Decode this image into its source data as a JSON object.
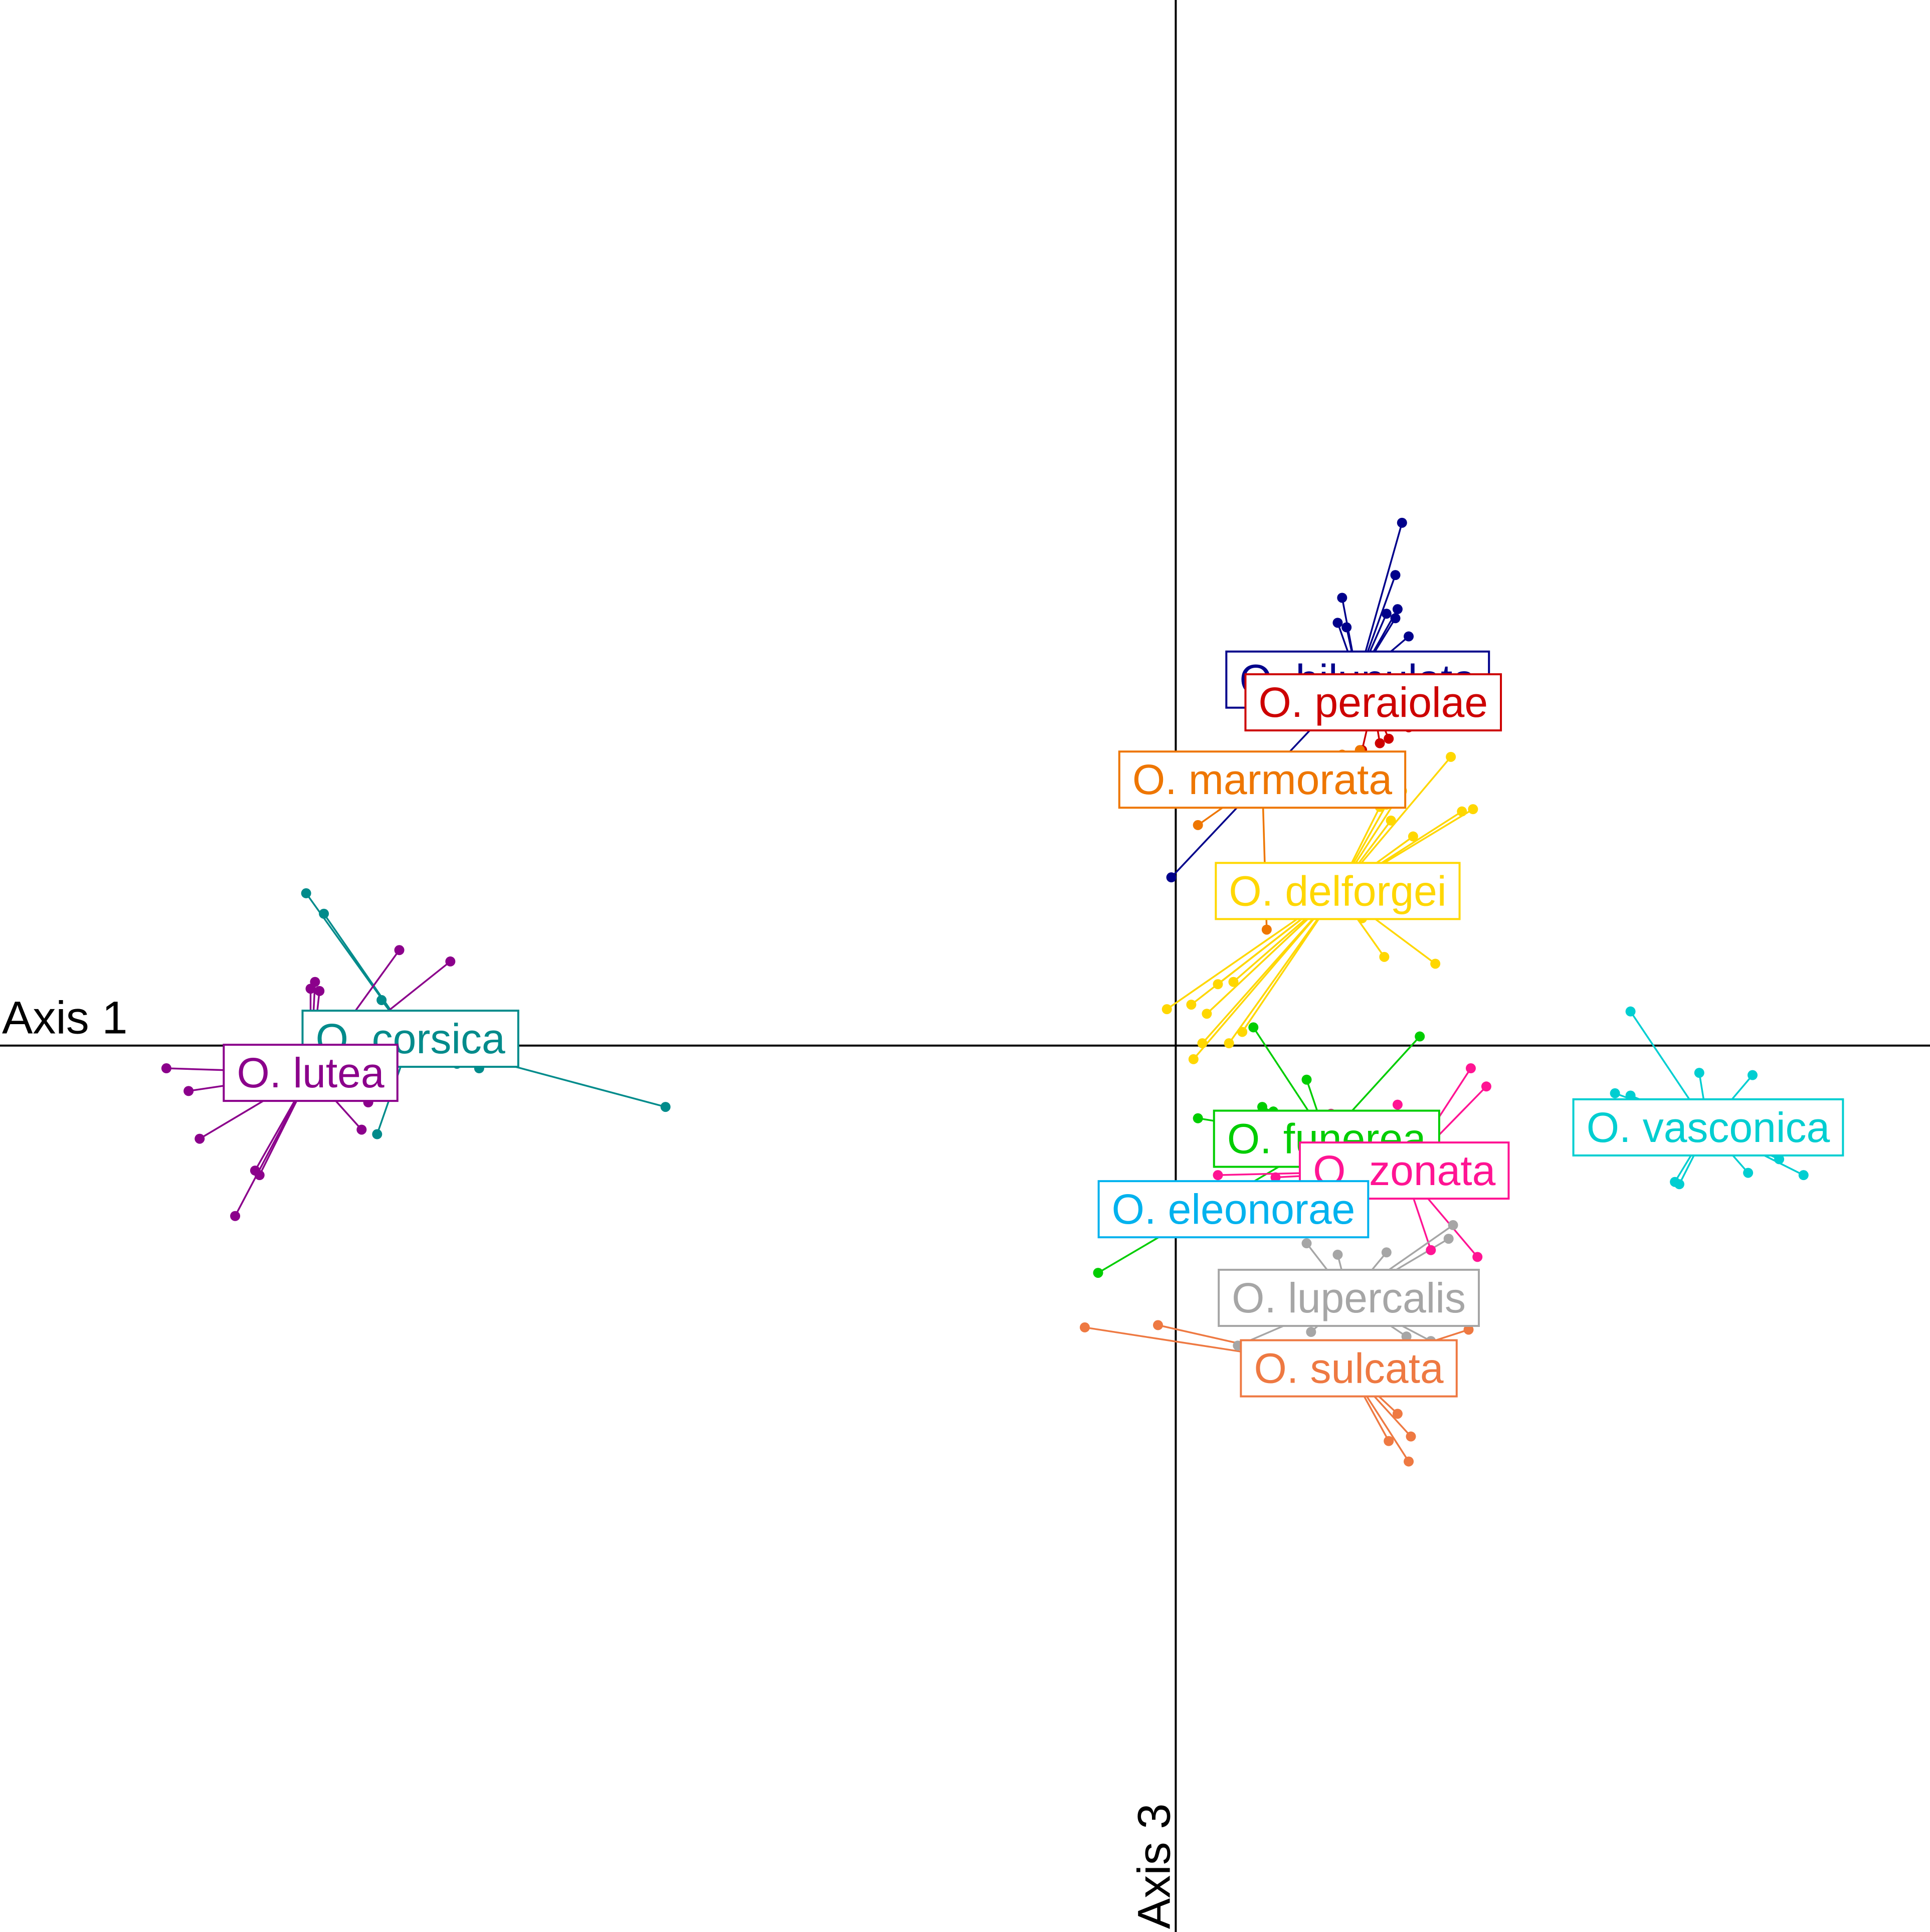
{
  "chart_data": {
    "type": "scatter",
    "title": "",
    "xlabel": "Axis 1",
    "ylabel": "Axis 3",
    "xlim": [
      -5.3,
      3.4
    ],
    "ylim": [
      -3.9,
      4.6
    ],
    "grid": false,
    "legend": "none",
    "series": [
      {
        "name": "O. corsica",
        "color": "#008B8B",
        "centroid": [
          -3.45,
          0.03
        ],
        "points": [
          [
            -3.92,
            0.67
          ],
          [
            -3.84,
            0.58
          ],
          [
            -3.46,
            0.04
          ],
          [
            -3.24,
            -0.08
          ],
          [
            -3.14,
            -0.1
          ],
          [
            -2.3,
            -0.27
          ],
          [
            -3.6,
            -0.39
          ],
          [
            -3.58,
            0.2
          ]
        ]
      },
      {
        "name": "O. lutea",
        "color": "#8B008B",
        "centroid": [
          -3.9,
          -0.12
        ],
        "points": [
          [
            -4.55,
            -0.1
          ],
          [
            -4.45,
            -0.2
          ],
          [
            -3.5,
            0.42
          ],
          [
            -3.27,
            0.37
          ],
          [
            -4.4,
            -0.41
          ],
          [
            -4.15,
            -0.55
          ],
          [
            -4.24,
            -0.75
          ],
          [
            -4.13,
            -0.57
          ],
          [
            -3.64,
            -0.25
          ],
          [
            -3.9,
            0.25
          ],
          [
            -3.86,
            0.24
          ],
          [
            -3.67,
            -0.37
          ],
          [
            -3.88,
            0.28
          ]
        ]
      },
      {
        "name": "O. bilunulata",
        "color": "#00008B",
        "centroid": [
          0.82,
          1.61
        ],
        "points": [
          [
            1.02,
            2.3
          ],
          [
            0.99,
            2.07
          ],
          [
            0.75,
            1.97
          ],
          [
            0.73,
            1.86
          ],
          [
            0.77,
            1.84
          ],
          [
            0.95,
            1.9
          ],
          [
            1.0,
            1.92
          ],
          [
            0.99,
            1.88
          ],
          [
            -0.02,
            0.74
          ],
          [
            1.05,
            1.8
          ]
        ]
      },
      {
        "name": "O. peraiolae",
        "color": "#CD0000",
        "centroid": [
          0.89,
          1.51
        ],
        "points": [
          [
            1.05,
            1.4
          ],
          [
            0.84,
            1.3
          ],
          [
            0.92,
            1.33
          ],
          [
            0.96,
            1.35
          ]
        ]
      },
      {
        "name": "O. marmorata",
        "color": "#EE7600",
        "centroid": [
          0.39,
          1.17
        ],
        "points": [
          [
            0.1,
            0.97
          ],
          [
            0.41,
            0.51
          ],
          [
            0.83,
            1.3
          ],
          [
            0.6,
            1.25
          ],
          [
            0.75,
            1.28
          ]
        ]
      },
      {
        "name": "O. delforgei",
        "color": "#FFD700",
        "centroid": [
          0.73,
          0.68
        ],
        "points": [
          [
            1.24,
            1.27
          ],
          [
            1.34,
            1.04
          ],
          [
            1.29,
            1.03
          ],
          [
            0.97,
            0.99
          ],
          [
            1.02,
            1.12
          ],
          [
            0.92,
            1.05
          ],
          [
            1.07,
            0.92
          ],
          [
            0.84,
            0.56
          ],
          [
            0.94,
            0.39
          ],
          [
            1.17,
            0.36
          ],
          [
            -0.04,
            0.16
          ],
          [
            0.07,
            0.18
          ],
          [
            0.14,
            0.14
          ],
          [
            0.19,
            0.27
          ],
          [
            0.26,
            0.28
          ],
          [
            0.12,
            0.01
          ],
          [
            0.3,
            0.06
          ],
          [
            0.24,
            0.01
          ],
          [
            0.08,
            -0.06
          ],
          [
            0.95,
            1.06
          ]
        ]
      },
      {
        "name": "O. funerea",
        "color": "#00CD00",
        "centroid": [
          0.68,
          -0.41
        ],
        "points": [
          [
            0.35,
            0.08
          ],
          [
            0.59,
            -0.15
          ],
          [
            1.1,
            0.04
          ],
          [
            0.1,
            -0.32
          ],
          [
            0.39,
            -0.27
          ],
          [
            0.44,
            -0.29
          ],
          [
            -0.35,
            -1.0
          ],
          [
            0.23,
            -0.31
          ]
        ]
      },
      {
        "name": "O. zonata",
        "color": "#FF1493",
        "centroid": [
          1.03,
          -0.55
        ],
        "points": [
          [
            1.33,
            -0.1
          ],
          [
            1.4,
            -0.18
          ],
          [
            1.0,
            -0.26
          ],
          [
            1.15,
            -0.9
          ],
          [
            1.36,
            -0.93
          ],
          [
            0.7,
            -0.3
          ],
          [
            0.19,
            -0.57
          ],
          [
            0.45,
            -0.58
          ]
        ]
      },
      {
        "name": "O. eleonorae",
        "color": "#00B2EE",
        "centroid": [
          0.26,
          -0.72
        ],
        "points": [
          [
            0.25,
            -0.68
          ],
          [
            0.05,
            -0.7
          ]
        ]
      },
      {
        "name": "O. lupercalis",
        "color": "#A6A6A6",
        "centroid": [
          0.78,
          -1.11
        ],
        "points": [
          [
            0.59,
            -0.87
          ],
          [
            0.73,
            -0.92
          ],
          [
            0.95,
            -0.91
          ],
          [
            1.25,
            -0.79
          ],
          [
            1.23,
            -0.85
          ],
          [
            0.28,
            -1.32
          ],
          [
            0.61,
            -1.26
          ],
          [
            1.04,
            -1.28
          ],
          [
            1.15,
            -1.3
          ]
        ]
      },
      {
        "name": "O. sulcata",
        "color": "#EE7942",
        "centroid": [
          0.78,
          -1.42
        ],
        "points": [
          [
            -0.41,
            -1.24
          ],
          [
            -0.08,
            -1.23
          ],
          [
            1.32,
            -1.25
          ],
          [
            1.05,
            -1.83
          ],
          [
            1.06,
            -1.72
          ],
          [
            0.96,
            -1.74
          ],
          [
            1.0,
            -1.62
          ]
        ]
      },
      {
        "name": "O. vasconica",
        "color": "#00CED1",
        "centroid": [
          2.4,
          -0.36
        ],
        "points": [
          [
            2.05,
            0.15
          ],
          [
            2.36,
            -0.12
          ],
          [
            2.6,
            -0.13
          ],
          [
            2.34,
            -0.4
          ],
          [
            1.98,
            -0.21
          ],
          [
            2.05,
            -0.22
          ],
          [
            2.25,
            -0.6
          ],
          [
            2.27,
            -0.61
          ],
          [
            2.58,
            -0.56
          ],
          [
            2.72,
            -0.5
          ],
          [
            2.83,
            -0.57
          ],
          [
            2.37,
            -0.42
          ]
        ]
      }
    ]
  }
}
